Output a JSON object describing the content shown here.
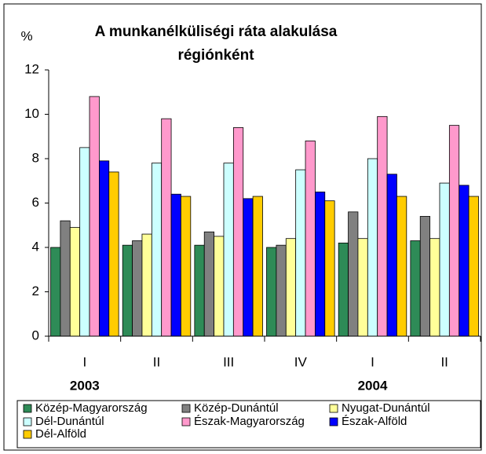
{
  "chart_data": {
    "type": "bar",
    "title": "A munkanélküliségi ráta alakulása régiónként",
    "y_label": "%",
    "categories": [
      "I",
      "II",
      "III",
      "IV",
      "I",
      "II"
    ],
    "group_labels": [
      "2003",
      "2004"
    ],
    "series": [
      {
        "name": "Közép-Magyarország",
        "color": "#2e8b57",
        "values": [
          4.0,
          4.1,
          4.1,
          4.0,
          4.2,
          4.3
        ]
      },
      {
        "name": "Közép-Dunántúl",
        "color": "#808080",
        "values": [
          5.2,
          4.3,
          4.7,
          4.1,
          5.6,
          5.4
        ]
      },
      {
        "name": "Nyugat-Dunántúl",
        "color": "#ffff99",
        "values": [
          4.9,
          4.6,
          4.5,
          4.4,
          4.4,
          4.4
        ]
      },
      {
        "name": "Dél-Dunántúl",
        "color": "#ccffff",
        "values": [
          8.5,
          7.8,
          7.8,
          7.5,
          8.0,
          6.9
        ]
      },
      {
        "name": "Észak-Magyarország",
        "color": "#ff99cc",
        "values": [
          10.8,
          9.8,
          9.4,
          8.8,
          9.9,
          9.5
        ]
      },
      {
        "name": "Észak-Alföld",
        "color": "#0000ff",
        "values": [
          7.9,
          6.4,
          6.2,
          6.5,
          7.3,
          6.8
        ]
      },
      {
        "name": "Dél-Alföld",
        "color": "#ffcc00",
        "values": [
          7.4,
          6.3,
          6.3,
          6.1,
          6.3,
          6.3
        ]
      }
    ],
    "ylim": [
      0,
      12
    ],
    "yticks": [
      0,
      2,
      4,
      6,
      8,
      10,
      12
    ],
    "grid": false
  }
}
